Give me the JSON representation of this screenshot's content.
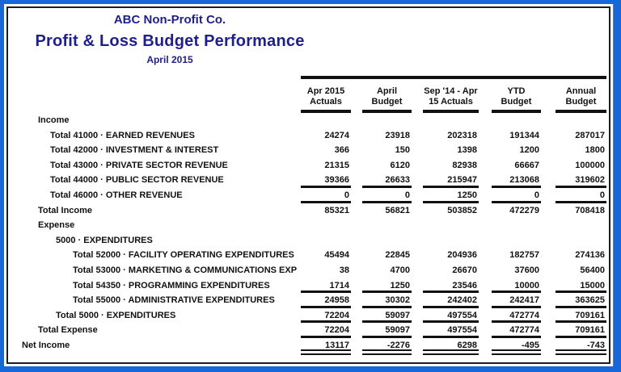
{
  "header": {
    "company": "ABC Non-Profit Co.",
    "title": "Profit & Loss Budget Performance",
    "subtitle": "April 2015"
  },
  "table": {
    "columns": [
      {
        "line1": "Apr 2015",
        "line2": "Actuals"
      },
      {
        "line1": "April",
        "line2": "Budget"
      },
      {
        "line1": "Sep '14 - Apr",
        "line2": "15 Actuals"
      },
      {
        "line1": "YTD",
        "line2": "Budget"
      },
      {
        "line1": "Annual",
        "line2": "Budget"
      }
    ],
    "rows": [
      {
        "label": "Income",
        "level": 1,
        "type": "section",
        "values": null,
        "underline": "none"
      },
      {
        "label": "Total 41000 · EARNED REVENUES",
        "level": 2,
        "type": "item",
        "values": [
          "24274",
          "23918",
          "202318",
          "191344",
          "287017"
        ],
        "underline": "none"
      },
      {
        "label": "Total 42000 · INVESTMENT & INTEREST",
        "level": 2,
        "type": "item",
        "values": [
          "366",
          "150",
          "1398",
          "1200",
          "1800"
        ],
        "underline": "none"
      },
      {
        "label": "Total 43000 · PRIVATE SECTOR REVENUE",
        "level": 2,
        "type": "item",
        "values": [
          "21315",
          "6120",
          "82938",
          "66667",
          "100000"
        ],
        "underline": "none"
      },
      {
        "label": "Total 44000 · PUBLIC SECTOR REVENUE",
        "level": 2,
        "type": "item",
        "values": [
          "39366",
          "26633",
          "215947",
          "213068",
          "319602"
        ],
        "underline": "single"
      },
      {
        "label": "Total 46000 · OTHER REVENUE",
        "level": 2,
        "type": "item",
        "values": [
          "0",
          "0",
          "1250",
          "0",
          "0"
        ],
        "underline": "single"
      },
      {
        "label": "Total Income",
        "level": 1,
        "type": "total",
        "values": [
          "85321",
          "56821",
          "503852",
          "472279",
          "708418"
        ],
        "underline": "none"
      },
      {
        "label": "Expense",
        "level": 1,
        "type": "section",
        "values": null,
        "underline": "none"
      },
      {
        "label": "5000 · EXPENDITURES",
        "level": 3,
        "type": "section",
        "values": null,
        "underline": "none"
      },
      {
        "label": "Total 52000 · FACILITY OPERATING EXPENDITURES",
        "level": 4,
        "type": "item",
        "values": [
          "45494",
          "22845",
          "204936",
          "182757",
          "274136"
        ],
        "underline": "none"
      },
      {
        "label": "Total 53000 · MARKETING & COMMUNICATIONS EXP",
        "level": 4,
        "type": "item",
        "values": [
          "38",
          "4700",
          "26670",
          "37600",
          "56400"
        ],
        "underline": "none"
      },
      {
        "label": "Total 54350 · PROGRAMMING EXPENDITURES",
        "level": 4,
        "type": "item",
        "values": [
          "1714",
          "1250",
          "23546",
          "10000",
          "15000"
        ],
        "underline": "single"
      },
      {
        "label": "Total 55000 · ADMINISTRATIVE EXPENDITURES",
        "level": 4,
        "type": "item",
        "values": [
          "24958",
          "30302",
          "242402",
          "242417",
          "363625"
        ],
        "underline": "single"
      },
      {
        "label": "Total 5000 · EXPENDITURES",
        "level": 3,
        "type": "total",
        "values": [
          "72204",
          "59097",
          "497554",
          "472774",
          "709161"
        ],
        "underline": "single"
      },
      {
        "label": "Total Expense",
        "level": 1,
        "type": "total",
        "values": [
          "72204",
          "59097",
          "497554",
          "472774",
          "709161"
        ],
        "underline": "single"
      },
      {
        "label": "Net Income",
        "level": 0,
        "type": "total",
        "values": [
          "13117",
          "-2276",
          "6298",
          "-495",
          "-743"
        ],
        "underline": "double"
      }
    ]
  },
  "colors": {
    "frame_blue": "#1767db",
    "title_navy": "#1f1f8c",
    "rule_black": "#111111"
  }
}
